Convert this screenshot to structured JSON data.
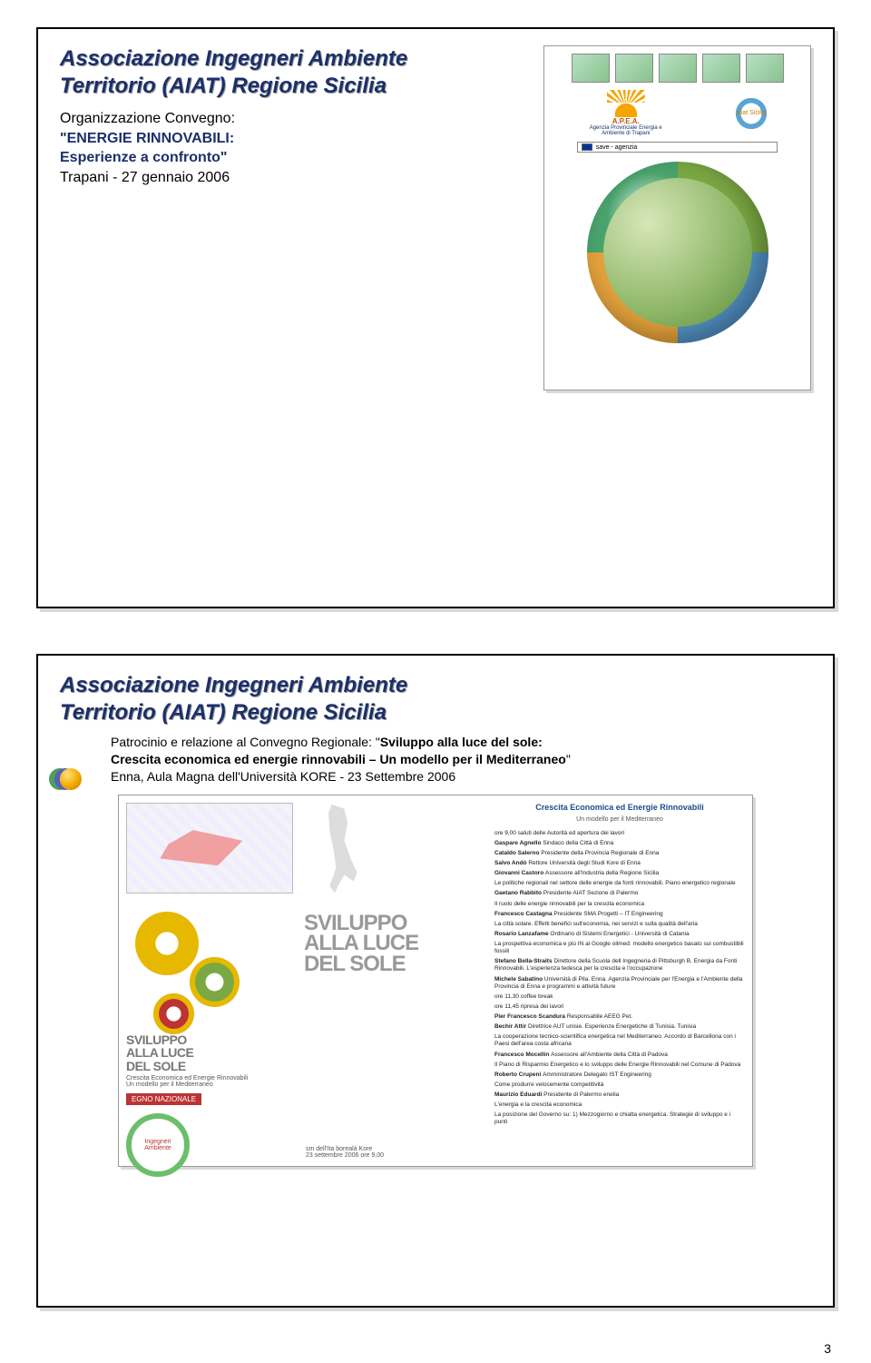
{
  "page_number": "3",
  "colors": {
    "title_blue": "#1b2f6b",
    "shadow": "#999999",
    "bullet_yellow": "#f3a800",
    "bullet_purple": "#5a60b5",
    "bullet_green": "#4e9e5c"
  },
  "slide1": {
    "title_line1": "Associazione Ingegneri Ambiente",
    "title_line2": "Territorio (AIAT) Regione Sicilia",
    "line1": "Organizzazione Convegno:",
    "line2_quote": "\"ENERGIE RINNOVABILI:",
    "line3_quote": "Esperienze a confronto\"",
    "line4": "Trapani - 27 gennaio 2006",
    "poster": {
      "apea_label": "A.P.E.A.",
      "apea_sub": "Agenzia Provinciale Energia e Ambiente di Trapani",
      "aiat_label": "Aiat Sicilia",
      "save_label": "save - agenzia"
    }
  },
  "slide2": {
    "title_line1": "Associazione Ingegneri Ambiente",
    "title_line2": "Territorio (AIAT) Regione Sicilia",
    "body_line1_a": "Patrocinio e relazione al Convegno Regionale: \"",
    "body_line1_b": "Sviluppo alla luce del sole:",
    "body_line2": "Crescita economica ed energie rinnovabili – Un modello per il Mediterraneo",
    "body_line3": "Enna, Aula Magna dell'Università KORE - 23 Settembre 2006",
    "poster": {
      "left": {
        "sviluppo1": "SVILUPPO",
        "sviluppo2": "ALLA LUCE",
        "sviluppo3": "DEL SOLE",
        "sub1": "Crescita Economica ed Energie Rinnovabili",
        "sub2": "Un modello per il Mediterraneo",
        "convegno": "EGNO NAZIONALE",
        "ring": "Ingegneri Ambiente"
      },
      "mid": {
        "t1": "SVILUPPO",
        "t2": "ALLA LUCE",
        "t3": "DEL SOLE",
        "kore1": "sm dell'Ita borealà Kore",
        "kore2": "23 settembre 2006 ore 9,00"
      },
      "right": {
        "header": "Crescita Economica ed Energie Rinnovabili",
        "header2": "Un modello per il Mediterraneo",
        "intro": "ore 9,00 saluti delle Autorità ed apertura dei lavori",
        "items": [
          {
            "n": "Gaspare Agnello",
            "d": "Sindaco della Città di Enna"
          },
          {
            "n": "Cataldo Salerno",
            "d": "Presidente della Provincia Regionale di Enna"
          },
          {
            "n": "Salvo Andò",
            "d": "Rettore Università degli Studi Kore di Enna"
          },
          {
            "n": "Giovanni Castoro",
            "d": "Assessore all'Industria della Regione Sicilia"
          },
          {
            "n": "",
            "d": "Le politiche regionali nel settore delle energie da fonti rinnovabili. Piano energetico regionale"
          },
          {
            "n": "Gaetano Rabbito",
            "d": "Presidente AIAT Sezione di Palermo"
          },
          {
            "n": "",
            "d": "Il ruolo delle energie rinnovabili per la crescita economica"
          },
          {
            "n": "Francesco Castagna",
            "d": "Presidente SMA Progetti – IT Engineering"
          },
          {
            "n": "",
            "d": "La città solare. Effetti benefici sull'economia, nei servizi e sulla qualità dell'aria"
          },
          {
            "n": "Rosario Lanzafame",
            "d": "Ordinario di Sistemi Energetici - Università di Catania"
          },
          {
            "n": "",
            "d": "La prospettiva economica e più IN al Google oilmed: modello energetico basato sui combustibili fossili"
          },
          {
            "n": "Stefano Bella-Straits",
            "d": "Direttore della Scuola dell Ingegneria di Pittsburgh B. Energia da Fonti Rinnovabili. L'esperienza tedesca per la crescita e l'occupazione"
          },
          {
            "n": "Michele Sabatino",
            "d": "Università di Pila. Enna. Agenzia Provinciale per l'Energia e l'Ambiente della Provincia di Enna e programmi e attività future"
          },
          {
            "n": "",
            "d": "ore 11,30 coffee break"
          },
          {
            "n": "",
            "d": "ore 11,45 ripresa dei lavori"
          },
          {
            "n": "Pier Francesco Scandura",
            "d": "Responsabile AEEG Pet."
          },
          {
            "n": "Bechir Attir",
            "d": "Direttrice AUT unisie. Esperienze Energetiche di Tunisia. Tunisia"
          },
          {
            "n": "",
            "d": "La cooperazione tecnico-scientifica energetica nel Mediterraneo. Accordo di Barcellona con i Paesi dell'area costa africana"
          },
          {
            "n": "Francesco Mocellin",
            "d": "Assessore all'Ambiente della Città di Padova"
          },
          {
            "n": "",
            "d": "Il Piano di Risparmio Energetico e lo sviluppo delle Energie Rinnovabili nel Comune di Padova"
          },
          {
            "n": "Roberto Crupeni",
            "d": "Amministratore Delegato IST Engineering"
          },
          {
            "n": "",
            "d": "Come produrre velocemente competitività"
          },
          {
            "n": "Maurizio Eduardi",
            "d": "Presidente di Palermo enelia"
          },
          {
            "n": "",
            "d": "L'energia e la crescita economica"
          },
          {
            "n": "",
            "d": "La posizione del Governo su: 1) Mezzogiorno e chiatta energetica. Strategie di sviluppo e i punti"
          }
        ]
      }
    }
  }
}
